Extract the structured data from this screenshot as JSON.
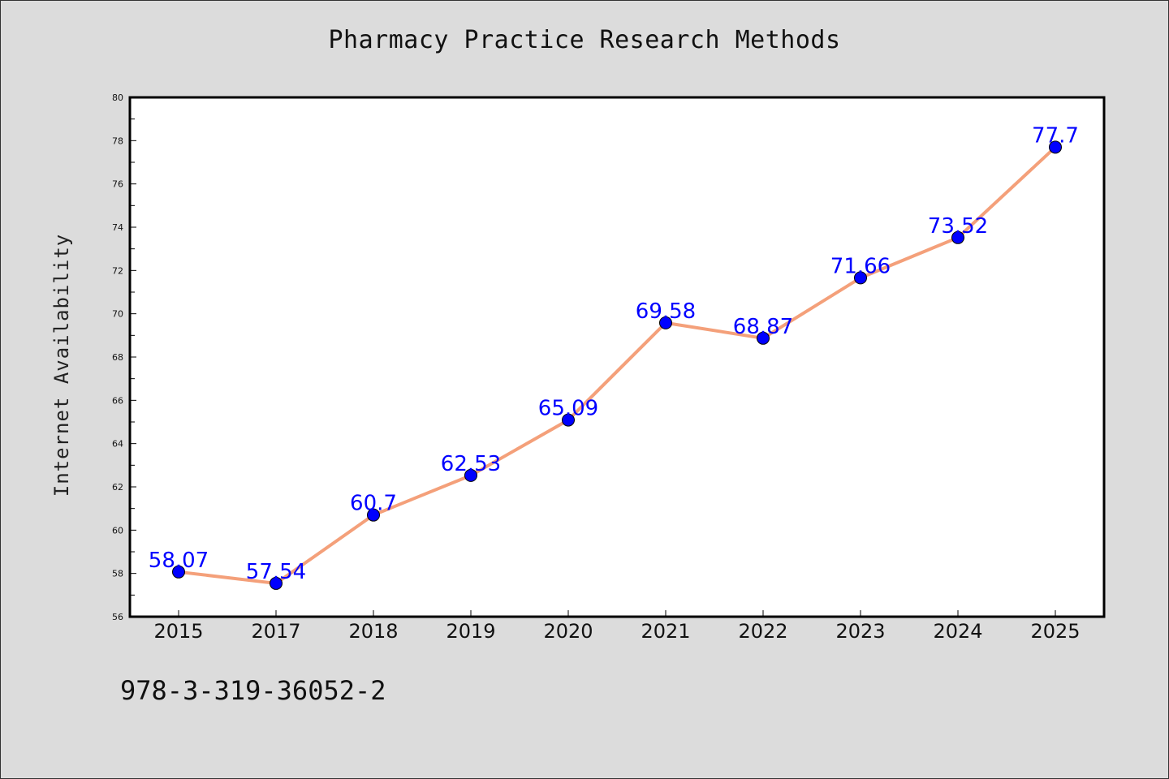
{
  "chart_data": {
    "type": "line",
    "title": "Pharmacy Practice Research Methods",
    "xlabel": "",
    "ylabel": "Internet Availability",
    "categories": [
      "2015",
      "2017",
      "2018",
      "2019",
      "2020",
      "2021",
      "2022",
      "2023",
      "2024",
      "2025"
    ],
    "series": [
      {
        "values": [
          58.07,
          57.54,
          60.7,
          62.53,
          65.09,
          69.58,
          68.87,
          71.66,
          73.52,
          77.7
        ],
        "data_labels": [
          "58.07",
          "57.54",
          "60.7",
          "62.53",
          "65.09",
          "69.58",
          "68.87",
          "71.66",
          "73.52",
          "77.7"
        ],
        "line_color": "#f4a07a",
        "marker_color": "#0000ff"
      }
    ],
    "ylim": [
      56,
      80
    ],
    "yticks": [
      56,
      58,
      60,
      62,
      64,
      66,
      68,
      70,
      72,
      74,
      76,
      78,
      80
    ],
    "grid": false,
    "legend": "none"
  },
  "footer_text": "978-3-319-36052-2",
  "colors": {
    "background": "#dcdcdc",
    "plot_background": "#ffffff",
    "line": "#f4a07a",
    "marker": "#0000ff",
    "data_label": "#0000ff"
  }
}
